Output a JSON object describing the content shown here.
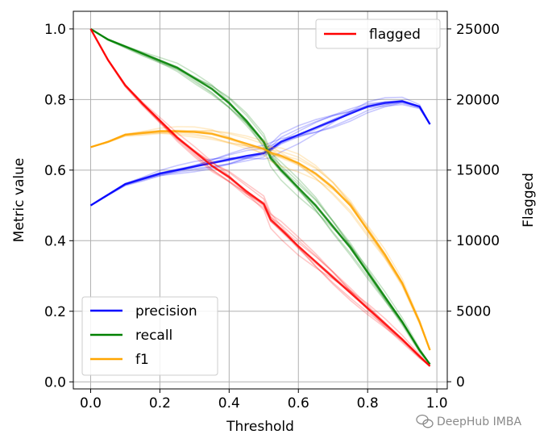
{
  "chart_data": {
    "type": "line",
    "title": "",
    "xlabel": "Threshold",
    "ylabel": "Metric value",
    "y2label": "Flagged",
    "xlim": [
      -0.05,
      1.03
    ],
    "ylim": [
      -0.02,
      1.05
    ],
    "y2lim": [
      -510,
      26250
    ],
    "xticks": [
      0.0,
      0.2,
      0.4,
      0.6,
      0.8,
      1.0
    ],
    "xtick_labels": [
      "0.0",
      "0.2",
      "0.4",
      "0.6",
      "0.8",
      "1.0"
    ],
    "yticks": [
      0.0,
      0.2,
      0.4,
      0.6,
      0.8,
      1.0
    ],
    "ytick_labels": [
      "0.0",
      "0.2",
      "0.4",
      "0.6",
      "0.8",
      "1.0"
    ],
    "y2ticks": [
      0,
      5000,
      10000,
      15000,
      20000,
      25000
    ],
    "y2tick_labels": [
      "0",
      "5000",
      "10000",
      "15000",
      "20000",
      "25000"
    ],
    "grid": true,
    "x": [
      0.0,
      0.05,
      0.1,
      0.15,
      0.2,
      0.25,
      0.3,
      0.35,
      0.4,
      0.45,
      0.5,
      0.52,
      0.55,
      0.6,
      0.65,
      0.7,
      0.75,
      0.8,
      0.85,
      0.9,
      0.95,
      0.98
    ],
    "series": [
      {
        "name": "precision",
        "axis": "left",
        "color": "#0000ff",
        "values": [
          0.5,
          0.53,
          0.56,
          0.575,
          0.59,
          0.6,
          0.61,
          0.62,
          0.63,
          0.64,
          0.648,
          0.66,
          0.68,
          0.7,
          0.72,
          0.74,
          0.76,
          0.78,
          0.79,
          0.795,
          0.78,
          0.73
        ]
      },
      {
        "name": "recall",
        "axis": "left",
        "color": "#008000",
        "values": [
          1.0,
          0.97,
          0.95,
          0.93,
          0.91,
          0.89,
          0.86,
          0.83,
          0.79,
          0.74,
          0.68,
          0.635,
          0.6,
          0.55,
          0.5,
          0.44,
          0.38,
          0.31,
          0.24,
          0.17,
          0.09,
          0.05
        ]
      },
      {
        "name": "f1",
        "axis": "left",
        "color": "#ffa500",
        "values": [
          0.665,
          0.68,
          0.7,
          0.705,
          0.71,
          0.71,
          0.708,
          0.703,
          0.69,
          0.675,
          0.66,
          0.65,
          0.64,
          0.62,
          0.59,
          0.55,
          0.5,
          0.43,
          0.36,
          0.28,
          0.17,
          0.09
        ]
      },
      {
        "name": "flagged",
        "axis": "right",
        "color": "#ff0000",
        "values": [
          25000,
          22800,
          21000,
          19700,
          18500,
          17300,
          16300,
          15300,
          14500,
          13500,
          12600,
          11500,
          10800,
          9600,
          8500,
          7400,
          6300,
          5200,
          4100,
          3000,
          1800,
          1100
        ]
      }
    ],
    "legends": [
      {
        "location": "lower-left",
        "entries": [
          "precision",
          "recall",
          "f1"
        ]
      },
      {
        "location": "upper-right",
        "entries": [
          "flagged"
        ]
      }
    ]
  },
  "watermark": {
    "text": "DeepHub IMBA",
    "icon": "wechat-icon"
  }
}
